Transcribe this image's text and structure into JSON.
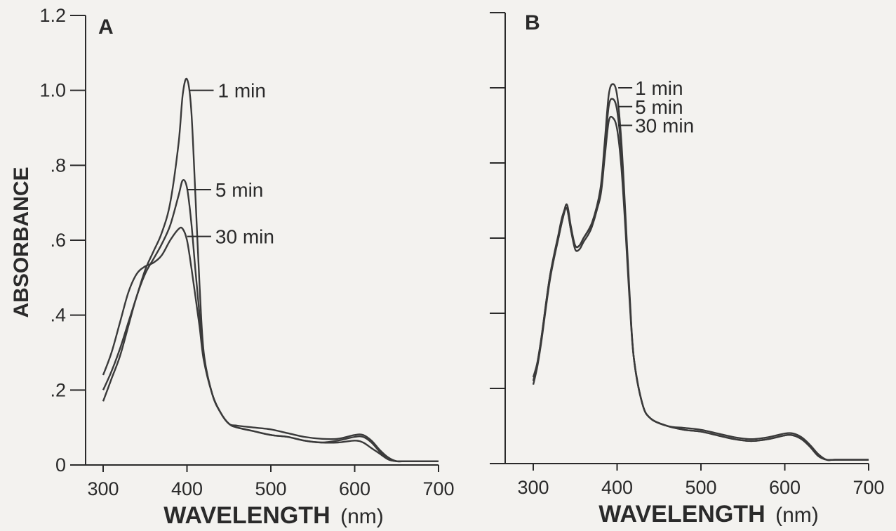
{
  "chart_data": [
    {
      "type": "line",
      "panel_label": "A",
      "xlabel": "WAVELENGTH",
      "xlabel_unit": "(nm)",
      "ylabel": "ABSORBANCE",
      "xlim": [
        300,
        700
      ],
      "ylim": [
        0,
        1.2
      ],
      "x_ticks": [
        300,
        400,
        500,
        600,
        700
      ],
      "x_tick_labels": [
        "300",
        "400",
        "500",
        "600",
        "700"
      ],
      "y_ticks": [
        0,
        0.2,
        0.4,
        0.6,
        0.8,
        1.0,
        1.2
      ],
      "y_tick_labels": [
        "0",
        ".2",
        ".4",
        ".6",
        ".8",
        "1.0",
        "1.2"
      ],
      "line_color": "#3a3a3a",
      "grid": false,
      "series": [
        {
          "name": "1 min",
          "x": [
            300,
            310,
            320,
            330,
            340,
            350,
            360,
            370,
            380,
            390,
            395,
            400,
            405,
            410,
            415,
            420,
            430,
            440,
            450,
            460,
            480,
            500,
            520,
            540,
            560,
            580,
            600,
            610,
            620,
            630,
            640,
            650,
            660,
            700
          ],
          "y": [
            0.2,
            0.25,
            0.31,
            0.38,
            0.45,
            0.52,
            0.57,
            0.62,
            0.7,
            0.86,
            0.99,
            1.03,
            0.95,
            0.72,
            0.48,
            0.3,
            0.19,
            0.14,
            0.11,
            0.1,
            0.09,
            0.08,
            0.075,
            0.065,
            0.06,
            0.06,
            0.065,
            0.06,
            0.045,
            0.03,
            0.015,
            0.01,
            0.01,
            0.01
          ]
        },
        {
          "name": "5 min",
          "x": [
            300,
            310,
            320,
            330,
            340,
            350,
            360,
            370,
            380,
            390,
            395,
            400,
            405,
            410,
            415,
            420,
            430,
            440,
            450,
            460,
            480,
            500,
            520,
            540,
            560,
            580,
            600,
            610,
            620,
            630,
            640,
            650,
            660,
            700
          ],
          "y": [
            0.17,
            0.23,
            0.29,
            0.37,
            0.45,
            0.51,
            0.55,
            0.59,
            0.64,
            0.72,
            0.76,
            0.74,
            0.65,
            0.52,
            0.4,
            0.29,
            0.19,
            0.14,
            0.11,
            0.1,
            0.09,
            0.08,
            0.075,
            0.065,
            0.06,
            0.065,
            0.075,
            0.075,
            0.06,
            0.035,
            0.015,
            0.01,
            0.01,
            0.01
          ]
        },
        {
          "name": "30 min",
          "x": [
            300,
            310,
            320,
            330,
            340,
            350,
            360,
            370,
            380,
            390,
            395,
            400,
            405,
            410,
            415,
            420,
            430,
            440,
            450,
            460,
            480,
            500,
            520,
            540,
            560,
            580,
            600,
            610,
            620,
            630,
            640,
            650,
            660,
            700
          ],
          "y": [
            0.24,
            0.3,
            0.38,
            0.46,
            0.51,
            0.53,
            0.54,
            0.56,
            0.6,
            0.63,
            0.63,
            0.6,
            0.53,
            0.45,
            0.37,
            0.28,
            0.19,
            0.14,
            0.11,
            0.105,
            0.1,
            0.095,
            0.085,
            0.075,
            0.07,
            0.07,
            0.08,
            0.08,
            0.065,
            0.04,
            0.02,
            0.01,
            0.01,
            0.01
          ]
        }
      ],
      "annotations": [
        {
          "text": "1 min",
          "series": "1 min",
          "at_x": 400,
          "at_y": 1.0,
          "label_y": 1.0
        },
        {
          "text": "5 min",
          "series": "5 min",
          "at_x": 397,
          "at_y": 0.735,
          "label_y": 0.735
        },
        {
          "text": "30 min",
          "series": "30 min",
          "at_x": 397,
          "at_y": 0.61,
          "label_y": 0.61
        }
      ]
    },
    {
      "type": "line",
      "panel_label": "B",
      "xlabel": "WAVELENGTH",
      "xlabel_unit": "(nm)",
      "xlim": [
        300,
        700
      ],
      "ylim": [
        0,
        1.2
      ],
      "x_ticks": [
        300,
        400,
        500,
        600,
        700
      ],
      "x_tick_labels": [
        "300",
        "400",
        "500",
        "600",
        "700"
      ],
      "y_ticks": [
        0,
        0.2,
        0.4,
        0.6,
        0.8,
        1.0,
        1.2
      ],
      "y_tick_labels": [],
      "line_color": "#3a3a3a",
      "grid": false,
      "series": [
        {
          "name": "1 min",
          "x": [
            300,
            305,
            310,
            320,
            330,
            335,
            340,
            345,
            350,
            355,
            360,
            370,
            380,
            385,
            390,
            395,
            400,
            405,
            410,
            415,
            420,
            430,
            440,
            460,
            480,
            500,
            520,
            540,
            560,
            580,
            600,
            610,
            620,
            630,
            640,
            650,
            660,
            700
          ],
          "y": [
            0.23,
            0.27,
            0.34,
            0.5,
            0.6,
            0.65,
            0.69,
            0.63,
            0.58,
            0.58,
            0.6,
            0.64,
            0.73,
            0.85,
            0.98,
            1.01,
            0.98,
            0.86,
            0.66,
            0.45,
            0.28,
            0.16,
            0.12,
            0.1,
            0.09,
            0.085,
            0.075,
            0.065,
            0.06,
            0.065,
            0.075,
            0.075,
            0.065,
            0.045,
            0.02,
            0.01,
            0.01,
            0.01
          ]
        },
        {
          "name": "5 min",
          "x": [
            300,
            305,
            310,
            320,
            330,
            335,
            340,
            345,
            350,
            355,
            360,
            370,
            380,
            385,
            390,
            395,
            400,
            405,
            410,
            415,
            420,
            430,
            440,
            460,
            480,
            500,
            520,
            540,
            560,
            580,
            600,
            610,
            620,
            630,
            640,
            650,
            660,
            700
          ],
          "y": [
            0.21,
            0.26,
            0.33,
            0.49,
            0.6,
            0.65,
            0.68,
            0.62,
            0.57,
            0.57,
            0.59,
            0.63,
            0.72,
            0.83,
            0.95,
            0.97,
            0.94,
            0.83,
            0.64,
            0.44,
            0.28,
            0.16,
            0.12,
            0.1,
            0.09,
            0.085,
            0.075,
            0.065,
            0.06,
            0.065,
            0.075,
            0.075,
            0.065,
            0.045,
            0.02,
            0.01,
            0.01,
            0.01
          ]
        },
        {
          "name": "30 min",
          "x": [
            300,
            305,
            310,
            320,
            330,
            335,
            340,
            345,
            350,
            355,
            360,
            370,
            380,
            385,
            390,
            395,
            400,
            405,
            410,
            415,
            420,
            430,
            440,
            460,
            480,
            500,
            520,
            540,
            560,
            580,
            600,
            610,
            620,
            630,
            640,
            650,
            660,
            700
          ],
          "y": [
            0.22,
            0.27,
            0.34,
            0.5,
            0.61,
            0.66,
            0.68,
            0.62,
            0.58,
            0.58,
            0.6,
            0.64,
            0.71,
            0.81,
            0.91,
            0.92,
            0.89,
            0.79,
            0.62,
            0.43,
            0.28,
            0.16,
            0.12,
            0.1,
            0.095,
            0.09,
            0.08,
            0.07,
            0.065,
            0.07,
            0.08,
            0.08,
            0.07,
            0.05,
            0.025,
            0.01,
            0.01,
            0.01
          ]
        }
      ],
      "annotations": [
        {
          "text": "1 min",
          "series": "1 min",
          "at_x": 398,
          "at_y": 1.0,
          "label_y": 1.0
        },
        {
          "text": "5 min",
          "series": "5 min",
          "at_x": 398,
          "at_y": 0.95,
          "label_y": 0.95
        },
        {
          "text": "30 min",
          "series": "30 min",
          "at_x": 398,
          "at_y": 0.9,
          "label_y": 0.9
        }
      ]
    }
  ]
}
